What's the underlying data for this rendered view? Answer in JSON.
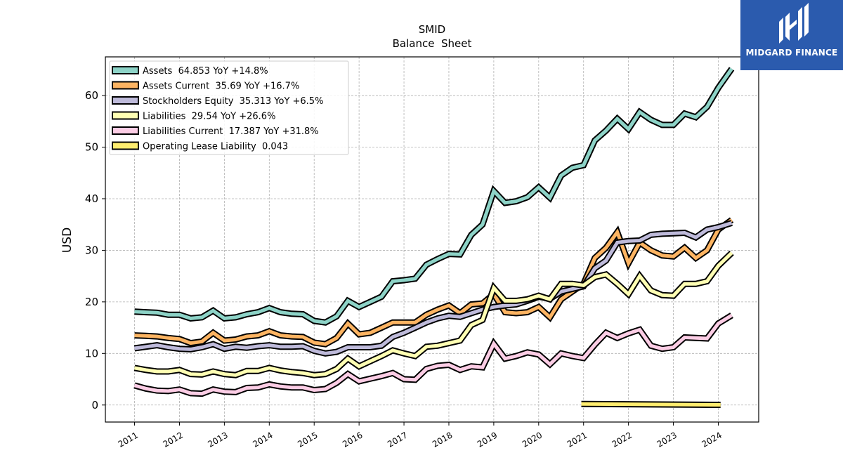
{
  "brand": {
    "name": "MIDGARD FINANCE",
    "bg_color": "#2b5bae"
  },
  "chart_data": {
    "type": "line",
    "title": "SMID",
    "subtitle": "Balance  Sheet",
    "ylabel": "USD",
    "xlabel": "",
    "ylim": [
      -3.3,
      67.5
    ],
    "xlim": [
      2010.35,
      2024.9
    ],
    "yticks": [
      0,
      10,
      20,
      30,
      40,
      50,
      60
    ],
    "xticks": [
      "2011",
      "2012",
      "2013",
      "2014",
      "2015",
      "2016",
      "2017",
      "2018",
      "2019",
      "2020",
      "2021",
      "2022",
      "2023",
      "2024"
    ],
    "grid": true,
    "legend_position": "top-left",
    "series": [
      {
        "name": "Assets  64.853 YoY +14.8%",
        "color": "#8dd3c7",
        "x": [
          2011.0,
          2011.25,
          2011.5,
          2011.75,
          2012.0,
          2012.25,
          2012.5,
          2012.75,
          2013.0,
          2013.25,
          2013.5,
          2013.75,
          2014.0,
          2014.25,
          2014.5,
          2014.75,
          2015.0,
          2015.25,
          2015.5,
          2015.75,
          2016.0,
          2016.25,
          2016.5,
          2016.75,
          2017.0,
          2017.25,
          2017.5,
          2017.75,
          2018.0,
          2018.25,
          2018.5,
          2018.75,
          2019.0,
          2019.25,
          2019.5,
          2019.75,
          2020.0,
          2020.25,
          2020.5,
          2020.75,
          2021.0,
          2021.25,
          2021.5,
          2021.75,
          2022.0,
          2022.25,
          2022.5,
          2022.75,
          2023.0,
          2023.25,
          2023.5,
          2023.75,
          2024.0,
          2024.3
        ],
        "values": [
          18.1,
          18.0,
          17.9,
          17.5,
          17.5,
          16.8,
          17.0,
          18.3,
          16.8,
          17.0,
          17.6,
          18.0,
          18.8,
          18.0,
          17.7,
          17.6,
          16.3,
          16.0,
          17.2,
          20.2,
          19.0,
          20.0,
          21.0,
          24.0,
          24.2,
          24.5,
          27.2,
          28.3,
          29.3,
          29.2,
          33.0,
          35.0,
          41.5,
          39.2,
          39.5,
          40.3,
          42.2,
          40.2,
          44.5,
          46.0,
          46.5,
          51.3,
          53.2,
          55.5,
          53.5,
          56.8,
          55.3,
          54.3,
          54.3,
          56.5,
          55.8,
          57.8,
          61.5,
          65.2
        ]
      },
      {
        "name": "Assets Current  35.69 YoY +16.7%",
        "color": "#fdb462",
        "x": [
          2011.0,
          2011.25,
          2011.5,
          2011.75,
          2012.0,
          2012.25,
          2012.5,
          2012.75,
          2013.0,
          2013.25,
          2013.5,
          2013.75,
          2014.0,
          2014.25,
          2014.5,
          2014.75,
          2015.0,
          2015.25,
          2015.5,
          2015.75,
          2016.0,
          2016.25,
          2016.5,
          2016.75,
          2017.0,
          2017.25,
          2017.5,
          2017.75,
          2018.0,
          2018.25,
          2018.5,
          2018.75,
          2019.0,
          2019.25,
          2019.5,
          2019.75,
          2020.0,
          2020.25,
          2020.5,
          2020.75,
          2021.0,
          2021.25,
          2021.5,
          2021.75,
          2022.0,
          2022.25,
          2022.5,
          2022.75,
          2023.0,
          2023.25,
          2023.5,
          2023.75,
          2024.0,
          2024.3
        ],
        "values": [
          13.5,
          13.4,
          13.3,
          13.0,
          12.8,
          12.0,
          12.3,
          14.0,
          12.5,
          12.7,
          13.3,
          13.5,
          14.3,
          13.5,
          13.3,
          13.2,
          12.1,
          11.8,
          13.0,
          15.8,
          13.7,
          14.0,
          15.0,
          16.0,
          16.0,
          16.0,
          17.5,
          18.5,
          19.3,
          17.8,
          19.5,
          19.7,
          21.5,
          18.0,
          17.8,
          18.0,
          19.0,
          17.0,
          20.5,
          22.0,
          23.5,
          28.5,
          30.5,
          33.5,
          27.5,
          31.5,
          30.0,
          29.0,
          28.8,
          30.5,
          28.5,
          30.0,
          34.0,
          35.9
        ]
      },
      {
        "name": "Stockholders Equity  35.313 YoY +6.5%",
        "color": "#bebada",
        "x": [
          2011.0,
          2011.25,
          2011.5,
          2011.75,
          2012.0,
          2012.25,
          2012.5,
          2012.75,
          2013.0,
          2013.25,
          2013.5,
          2013.75,
          2014.0,
          2014.25,
          2014.5,
          2014.75,
          2015.0,
          2015.25,
          2015.5,
          2015.75,
          2016.0,
          2016.25,
          2016.5,
          2016.75,
          2017.0,
          2017.25,
          2017.5,
          2017.75,
          2018.0,
          2018.25,
          2018.5,
          2018.75,
          2019.0,
          2019.25,
          2019.5,
          2019.75,
          2020.0,
          2020.25,
          2020.5,
          2020.75,
          2021.0,
          2021.25,
          2021.5,
          2021.75,
          2022.0,
          2022.25,
          2022.5,
          2022.75,
          2023.0,
          2023.25,
          2023.5,
          2023.75,
          2024.0,
          2024.3
        ],
        "values": [
          11.0,
          11.3,
          11.6,
          11.2,
          10.9,
          10.8,
          11.2,
          11.8,
          10.9,
          11.3,
          11.1,
          11.4,
          11.6,
          11.3,
          11.3,
          11.4,
          10.5,
          10.0,
          10.3,
          11.2,
          11.2,
          11.2,
          11.5,
          13.2,
          14.0,
          15.0,
          16.0,
          16.8,
          17.3,
          17.1,
          17.8,
          18.5,
          19.0,
          19.3,
          19.5,
          20.2,
          21.0,
          20.6,
          22.0,
          22.5,
          23.0,
          26.5,
          28.0,
          31.5,
          31.8,
          31.9,
          33.0,
          33.2,
          33.3,
          33.4,
          32.5,
          34.0,
          34.5,
          35.3
        ]
      },
      {
        "name": "Liabilities  29.54 YoY +26.6%",
        "color": "#ffffb3",
        "x": [
          2011.0,
          2011.25,
          2011.5,
          2011.75,
          2012.0,
          2012.25,
          2012.5,
          2012.75,
          2013.0,
          2013.25,
          2013.5,
          2013.75,
          2014.0,
          2014.25,
          2014.5,
          2014.75,
          2015.0,
          2015.25,
          2015.5,
          2015.75,
          2016.0,
          2016.25,
          2016.5,
          2016.75,
          2017.0,
          2017.25,
          2017.5,
          2017.75,
          2018.0,
          2018.25,
          2018.5,
          2018.75,
          2019.0,
          2019.25,
          2019.5,
          2019.75,
          2020.0,
          2020.25,
          2020.5,
          2020.75,
          2021.0,
          2021.25,
          2021.5,
          2021.75,
          2022.0,
          2022.25,
          2022.5,
          2022.75,
          2023.0,
          2023.25,
          2023.5,
          2023.75,
          2024.0,
          2024.3
        ],
        "values": [
          7.2,
          6.8,
          6.5,
          6.5,
          6.8,
          6.0,
          5.9,
          6.5,
          6.0,
          5.8,
          6.6,
          6.6,
          7.2,
          6.7,
          6.4,
          6.2,
          5.8,
          6.0,
          7.0,
          9.0,
          7.5,
          8.5,
          9.5,
          10.6,
          10.0,
          9.5,
          11.3,
          11.5,
          12.0,
          12.5,
          15.5,
          16.5,
          22.7,
          20.2,
          20.2,
          20.5,
          21.2,
          20.5,
          23.5,
          23.5,
          23.2,
          24.8,
          25.3,
          23.5,
          21.5,
          25.0,
          22.2,
          21.3,
          21.2,
          23.5,
          23.5,
          24.0,
          27.0,
          29.5
        ]
      },
      {
        "name": "Liabilities Current  17.387 YoY +31.8%",
        "color": "#fccde5",
        "x": [
          2011.0,
          2011.25,
          2011.5,
          2011.75,
          2012.0,
          2012.25,
          2012.5,
          2012.75,
          2013.0,
          2013.25,
          2013.5,
          2013.75,
          2014.0,
          2014.25,
          2014.5,
          2014.75,
          2015.0,
          2015.25,
          2015.5,
          2015.75,
          2016.0,
          2016.25,
          2016.5,
          2016.75,
          2017.0,
          2017.25,
          2017.5,
          2017.75,
          2018.0,
          2018.25,
          2018.5,
          2018.75,
          2019.0,
          2019.25,
          2019.5,
          2019.75,
          2020.0,
          2020.25,
          2020.5,
          2020.75,
          2021.0,
          2021.25,
          2021.5,
          2021.75,
          2022.0,
          2022.25,
          2022.5,
          2022.75,
          2023.0,
          2023.25,
          2023.5,
          2023.75,
          2024.0,
          2024.3
        ],
        "values": [
          3.8,
          3.2,
          2.8,
          2.7,
          3.0,
          2.3,
          2.2,
          3.0,
          2.6,
          2.5,
          3.3,
          3.4,
          4.0,
          3.6,
          3.4,
          3.4,
          2.9,
          3.1,
          4.3,
          6.0,
          4.6,
          5.1,
          5.6,
          6.2,
          5.0,
          4.9,
          7.0,
          7.6,
          7.8,
          6.8,
          7.5,
          7.3,
          11.9,
          9.0,
          9.5,
          10.2,
          9.8,
          7.9,
          10.0,
          9.5,
          9.1,
          11.7,
          14.0,
          13.0,
          13.9,
          14.6,
          11.5,
          10.9,
          11.2,
          13.1,
          13.0,
          12.9,
          15.8,
          17.4
        ]
      },
      {
        "name": "Operating Lease Liability  0.043",
        "color": "#ffed6f",
        "x": [
          2020.95,
          2024.05
        ],
        "values": [
          0.2,
          0.04
        ]
      }
    ]
  }
}
